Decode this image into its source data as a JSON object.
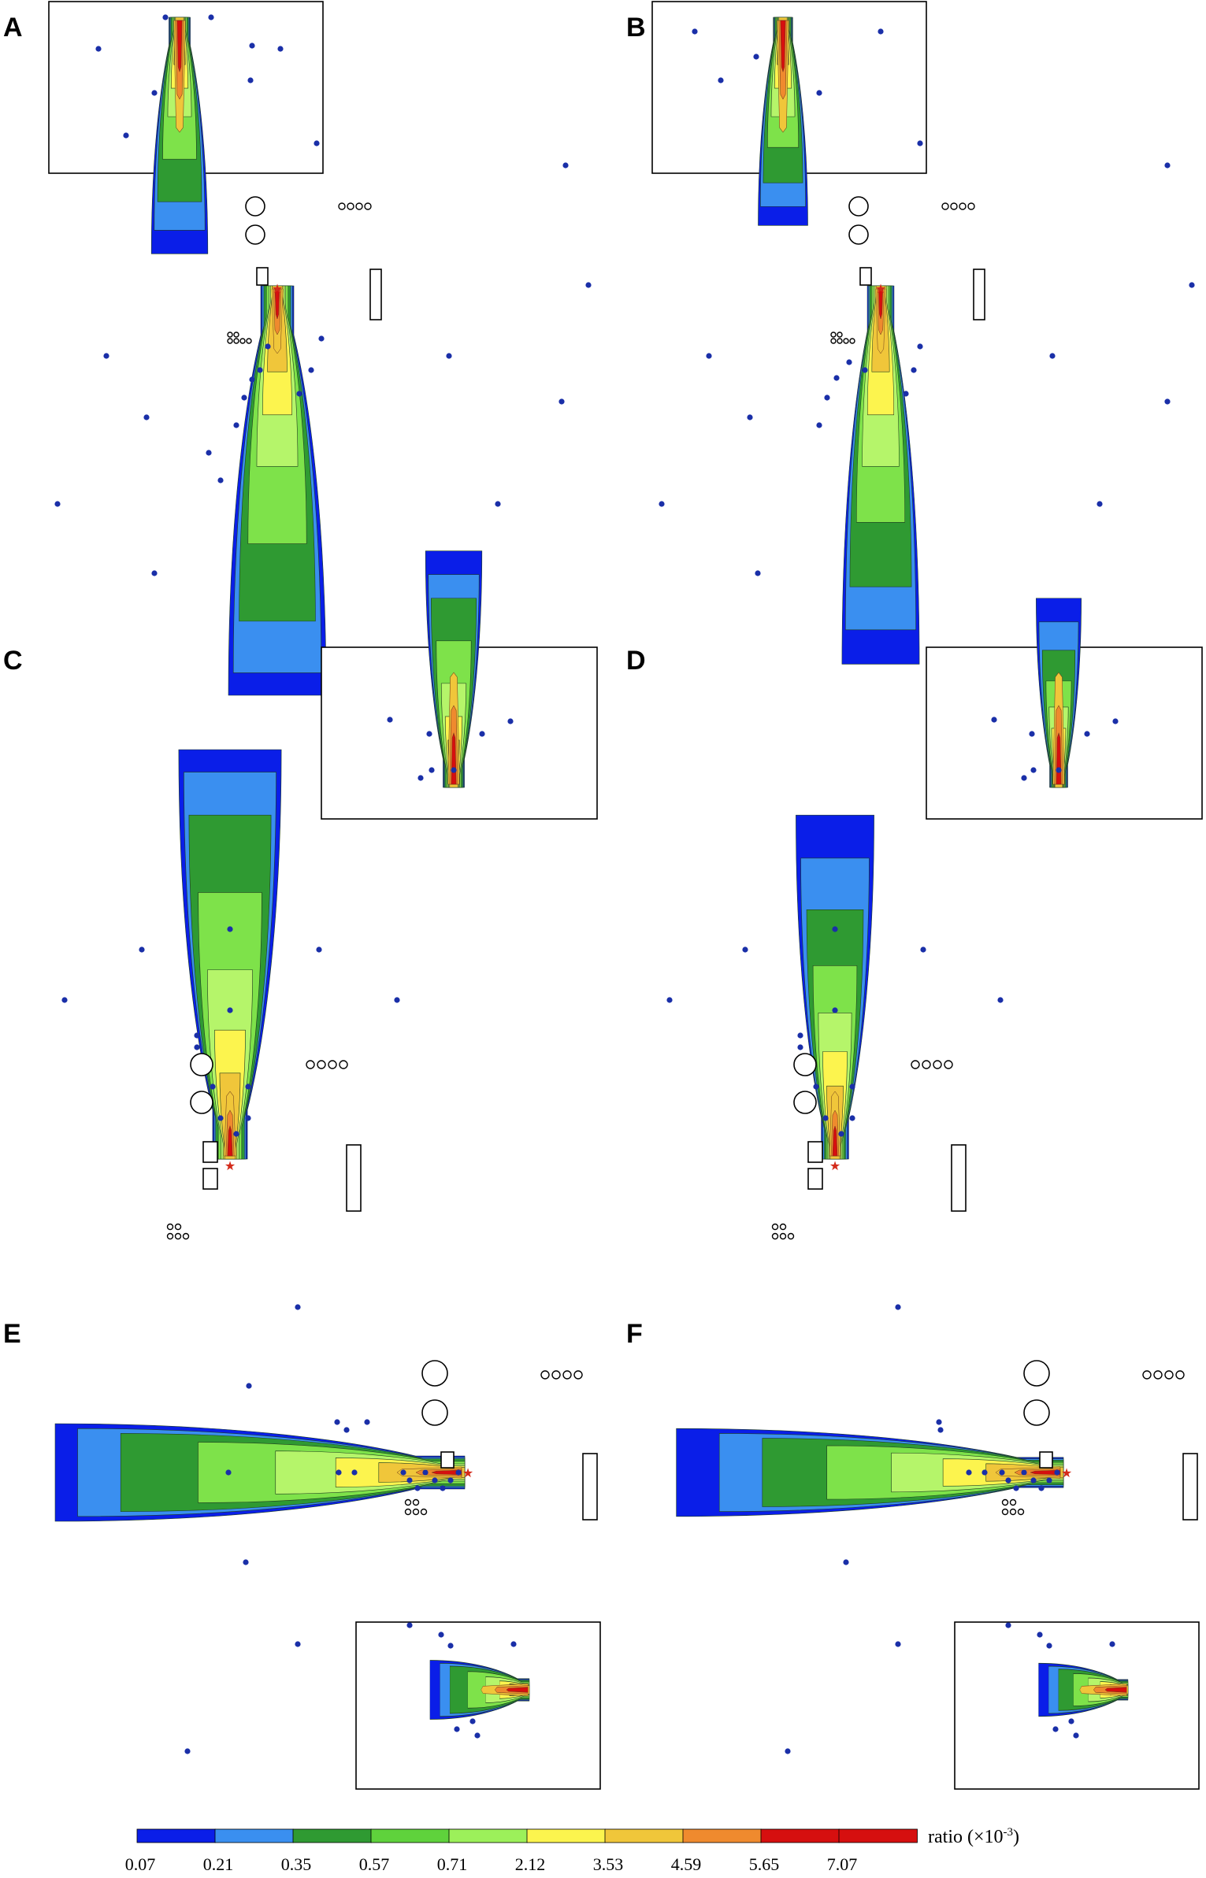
{
  "panels": [
    {
      "id": "A",
      "label": "A",
      "orientation": "down",
      "layers": [
        1.0,
        0.9,
        0.78,
        0.6,
        0.42,
        0.3,
        0.2
      ]
    },
    {
      "id": "B",
      "label": "B",
      "orientation": "down",
      "layers": [
        0.88,
        0.8,
        0.7,
        0.55,
        0.42,
        0.3,
        0.2
      ]
    },
    {
      "id": "C",
      "label": "C",
      "orientation": "up",
      "layers": [
        1.0,
        0.9,
        0.8,
        0.62,
        0.44,
        0.3,
        0.2
      ]
    },
    {
      "id": "D",
      "label": "D",
      "orientation": "up",
      "layers": [
        0.8,
        0.7,
        0.58,
        0.45,
        0.34,
        0.25,
        0.17
      ]
    },
    {
      "id": "E",
      "label": "E",
      "orientation": "left",
      "layers": [
        1.0,
        0.9,
        0.8,
        0.62,
        0.44,
        0.3,
        0.2
      ]
    },
    {
      "id": "F",
      "label": "F",
      "orientation": "left",
      "layers": [
        0.9,
        0.8,
        0.7,
        0.55,
        0.4,
        0.28,
        0.18
      ]
    }
  ],
  "colorbar": {
    "colors": [
      "#0a1ee8",
      "#3a8ff0",
      "#2f9a32",
      "#5fd23c",
      "#9cf05a",
      "#fcf44e",
      "#f0c63a",
      "#ef8a2e",
      "#d60f0f",
      "#d60f0f"
    ],
    "ticks": [
      "0.07",
      "0.21",
      "0.35",
      "0.57",
      "0.71",
      "2.12",
      "3.53",
      "4.59",
      "5.65",
      "7.07"
    ],
    "unit_prefix": "ratio (",
    "unit_mult": "×",
    "unit_base": "10",
    "unit_exp": "-3",
    "unit_suffix": ")"
  },
  "contour_colors": [
    "#0a1ee8",
    "#3a8ff0",
    "#2f9a32",
    "#7ee24a",
    "#b5f56a",
    "#fcf44e",
    "#f0c63a",
    "#ef8a2e",
    "#d60f0f"
  ],
  "marker_colors": {
    "sensor": "#1a2fa8",
    "source": "#d42a1a"
  }
}
